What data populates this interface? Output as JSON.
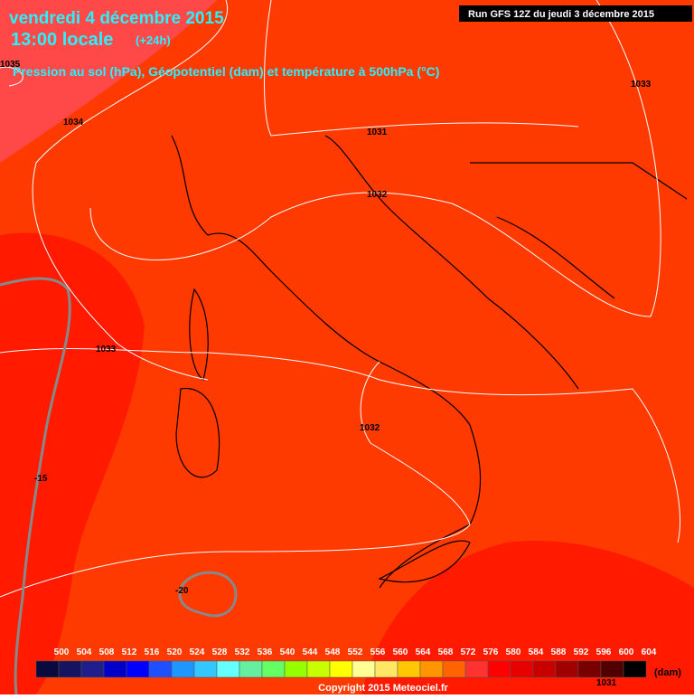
{
  "header": {
    "date": "vendredi 4 décembre 2015",
    "time": "13:00 locale",
    "lead": "(+24h)",
    "subtitle": "Pression au sol (hPa), Géopotentiel (dam) et température à 500hPa (°C)",
    "run": "Run GFS 12Z du jeudi 3 décembre 2015"
  },
  "isobars": [
    "1035",
    "1034",
    "1033",
    "1031",
    "1032",
    "1033",
    "1032",
    "1031"
  ],
  "isotherms": [
    "-15",
    "-20"
  ],
  "legend": {
    "values": [
      500,
      504,
      508,
      512,
      516,
      520,
      524,
      528,
      532,
      536,
      540,
      544,
      548,
      552,
      556,
      560,
      564,
      568,
      572,
      576,
      580,
      584,
      588,
      592,
      596,
      600,
      604
    ],
    "colors": [
      "#0a0a40",
      "#141460",
      "#1e1e8c",
      "#0000c8",
      "#0000ff",
      "#1e50ff",
      "#1e96ff",
      "#32c8ff",
      "#64ffff",
      "#64f0a0",
      "#64ff64",
      "#96ff00",
      "#c8ff00",
      "#ffff00",
      "#ffff96",
      "#ffe664",
      "#ffc800",
      "#ff9600",
      "#ff6400",
      "#ff3232",
      "#ff0000",
      "#e60000",
      "#c80000",
      "#a00000",
      "#780000",
      "#500000",
      "#000000"
    ],
    "unit": "(dam)"
  },
  "footer": "Copyright 2015 Meteociel.fr"
}
